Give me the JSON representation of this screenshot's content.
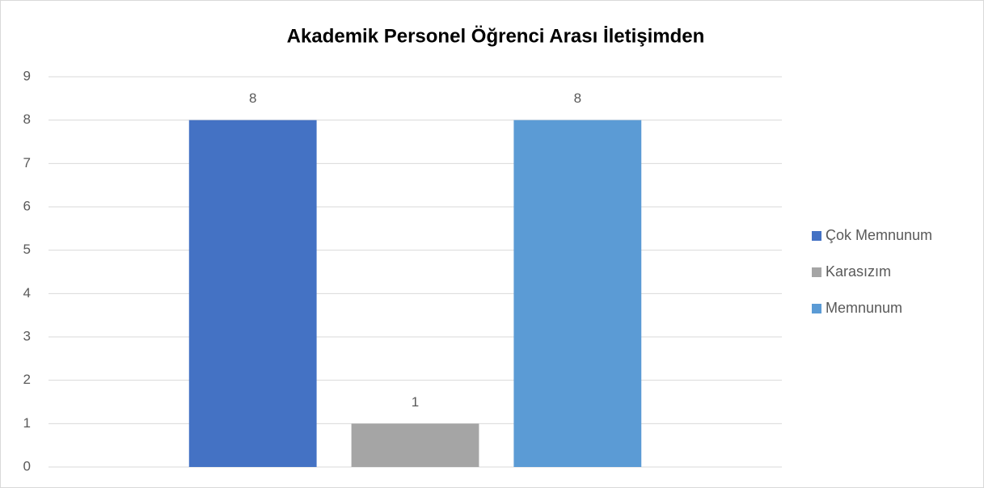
{
  "chart_data": {
    "type": "bar",
    "title": "Akademik Personel Öğrenci Arası İletişimden",
    "categories": [
      null
    ],
    "series": [
      {
        "name": "Çok Memnunum",
        "color": "#4472c4",
        "values": [
          8
        ]
      },
      {
        "name": "Karasızım",
        "color": "#a5a5a5",
        "values": [
          1
        ]
      },
      {
        "name": "Memnunum",
        "color": "#5b9bd5",
        "values": [
          8
        ]
      }
    ],
    "ylim": [
      0,
      9
    ],
    "yticks": [
      0,
      1,
      2,
      3,
      4,
      5,
      6,
      7,
      8,
      9
    ],
    "grid": true,
    "legend": "right",
    "data_labels": true
  }
}
